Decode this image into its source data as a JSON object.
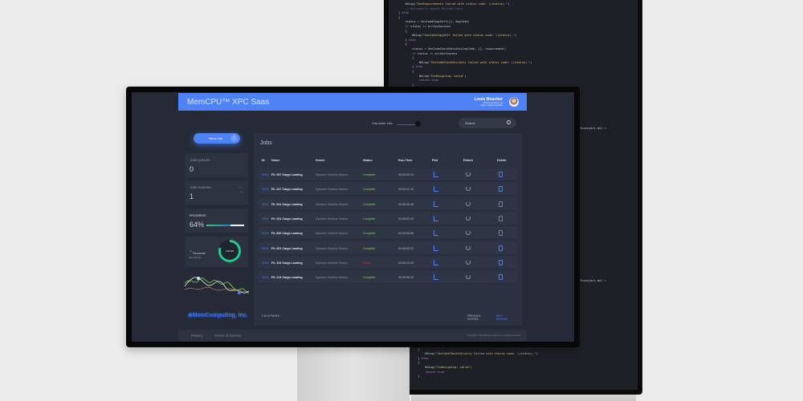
{
  "code_top": [
    "    NSLog(\"SecRequirements failed with status code: \\(status).\")",
    "    // optionally unpack Bellows here",
    "} else",
    "{",
    "    status = SecCodeCopySelf([], &myCode)",
    "    if status != errSecSuccess",
    "    {",
    "        NSLog(\"SecCodeCopySelf failed with status code: \\(status).\")",
    "    } else",
    "    {",
    "        status = SecCodeCheckValidity(myCode, [], requirement)",
    "        if status != errSecSuccess",
    "        {",
    "            NSLog(\"SecCodeCheckValidity failed with status code: \\(status).\")",
    "        } else",
    "        {",
    "            NSLog(\"Codesigning: valid\")",
    "            return true",
    "        }",
    "    }",
    "}"
  ],
  "code_side": "ifLockject.dul = ",
  "code_bottom": [
    "    if status != errSecSuccess",
    "    {",
    "        NSLog(\"SecCodeCheckValidity failed with status code: \\(status).\")",
    "    } else",
    "    {",
    "        NSLog(\"Codesigning: valid\")",
    "        return true",
    "    }"
  ],
  "header": {
    "title": "MemCPU™ XPC Saas",
    "user_name": "Louis Boucher",
    "user_sub1": "Software Engineer Ltd",
    "user_sub2": "Cargo Loading Specialist"
  },
  "toggle_label": "Only active Jobs",
  "search": {
    "placeholder": "Search"
  },
  "new_job_label": "+New Job",
  "cards": {
    "queued_label": "JOBS QUEUED",
    "queued_value": "0",
    "running_label": "JOBS RUNNING",
    "running_value": "1",
    "progress_label": "PROGRESS",
    "progress_value": "64%",
    "progress_fraction": 0.64,
    "remaining_label": "Seconds",
    "remaining_sub": "Remaining",
    "ring_text": "1:02:18"
  },
  "logo": "MemComputing, Inc.",
  "jobs": {
    "title": "Jobs",
    "columns": [
      "ID",
      "Name",
      "Solver",
      "Status",
      "Run-Time",
      "Plot",
      "Return",
      "Delete"
    ],
    "rows": [
      {
        "id": "0018",
        "name": "Fit. 967 Cargo Loading",
        "solver": "Dynamic Solution Search",
        "status": "Complete",
        "runtime": "00:00:08.10"
      },
      {
        "id": "0018",
        "name": "Fit. 427 Cargo Loading",
        "solver": "Dynamic Solution Search",
        "status": "Complete",
        "runtime": "00:00:22.12"
      },
      {
        "id": "0018",
        "name": "Fit. 641 Cargo Loading",
        "solver": "Dynamic Solution Search",
        "status": "Complete",
        "runtime": "00:05:45.48"
      },
      {
        "id": "0018",
        "name": "Fit. 201 Cargo Loading",
        "solver": "Dynamic Solution Search",
        "status": "Complete",
        "runtime": "00:05:02.04"
      },
      {
        "id": "0018",
        "name": "Fit. 806 Cargo Loading",
        "solver": "Dynamic Solution Search",
        "status": "Complete",
        "runtime": "00:04:08.66"
      },
      {
        "id": "0018",
        "name": "Fit. 661 Cargo Loading",
        "solver": "Dynamic Solution Search",
        "status": "Complete",
        "runtime": "00:06:05.22"
      },
      {
        "id": "0018",
        "name": "Fit. 103 Cargo Loading",
        "solver": "Dynamic Solution Search",
        "status": "Failed",
        "runtime": "00:00:15.09"
      },
      {
        "id": "0018",
        "name": "Fit. 213 Cargo Loading",
        "solver": "Dynamic Solution Search",
        "status": "Complete",
        "runtime": "00:00:08.10"
      }
    ],
    "pages": "1 IN 10 PAGES",
    "prev": "PREVIOUS ENTRIES",
    "next": "NEXT ENTRIES"
  },
  "footer": {
    "privacy": "Privacy",
    "terms": "Terms of Service",
    "copyright": "Copyright © 2018 MemComputing Inc. All rights reserved."
  },
  "colors": {
    "accent": "#4f82f4",
    "complete": "#7ed957",
    "failed": "#e0283a"
  }
}
